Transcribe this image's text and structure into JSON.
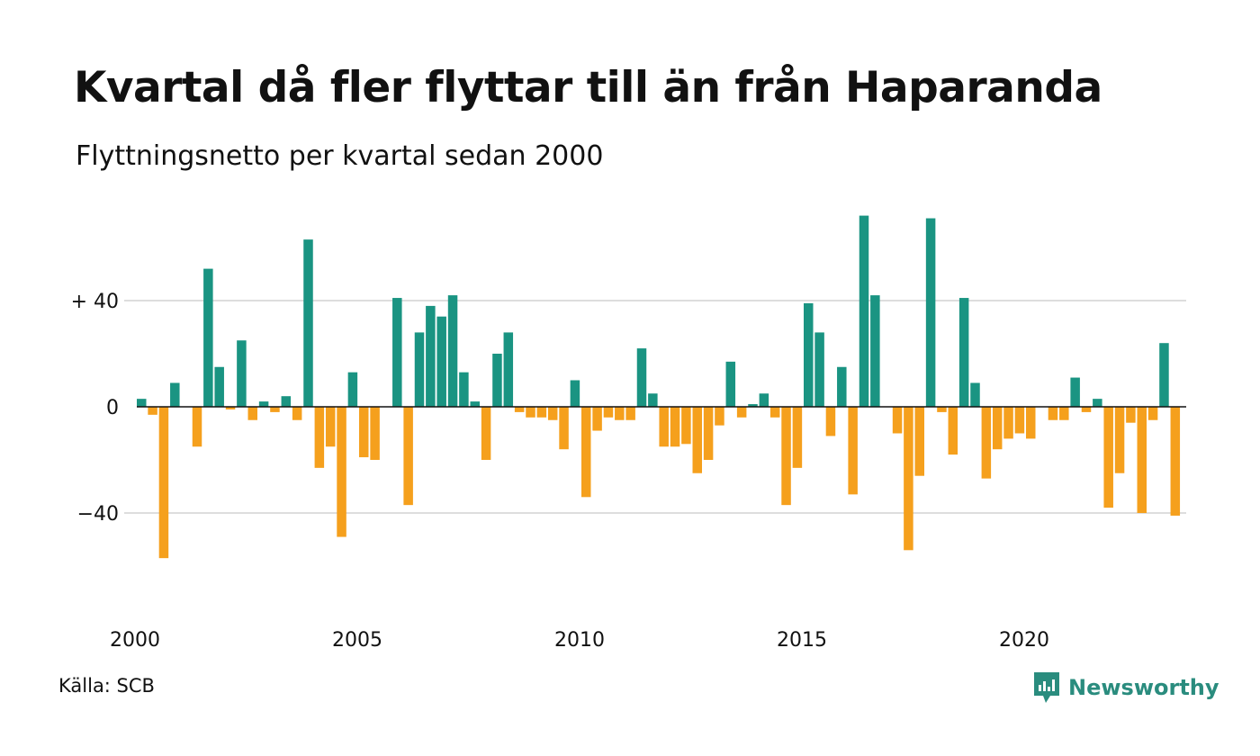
{
  "title": "Kvartal då fler flyttar till än från Haparanda",
  "subtitle": "Flyttningsnetto per kvartal sedan 2000",
  "source": "Källa: SCB",
  "brand": {
    "name": "Newsworthy",
    "color": "#2a8c7e",
    "icon": "newsworthy-logo-icon"
  },
  "colors": {
    "positive": "#1a9482",
    "negative": "#f5a01d",
    "grid": "#dddddd",
    "zero": "#111111"
  },
  "chart_data": {
    "type": "bar",
    "ylim": [
      -70,
      75
    ],
    "yticks": [
      {
        "value": 40,
        "label": "+ 40"
      },
      {
        "value": 0,
        "label": "0"
      },
      {
        "value": -40,
        "label": "−40"
      }
    ],
    "grid": true,
    "legend": "none",
    "x_start": "2000-Q1",
    "x_labels": [
      {
        "year": 2000,
        "label": "2000"
      },
      {
        "year": 2005,
        "label": "2005"
      },
      {
        "year": 2010,
        "label": "2010"
      },
      {
        "year": 2015,
        "label": "2015"
      },
      {
        "year": 2020,
        "label": "2020"
      }
    ],
    "values": [
      3,
      -3,
      -57,
      9,
      0,
      -15,
      52,
      15,
      -1,
      25,
      -5,
      2,
      -2,
      4,
      -5,
      63,
      -23,
      -15,
      -49,
      13,
      -19,
      -20,
      0,
      41,
      -37,
      28,
      38,
      34,
      42,
      13,
      2,
      -20,
      20,
      28,
      -2,
      -4,
      -4,
      -5,
      -16,
      10,
      -34,
      -9,
      -4,
      -5,
      -5,
      22,
      5,
      -15,
      -15,
      -14,
      -25,
      -20,
      -7,
      17,
      -4,
      1,
      5,
      -4,
      -37,
      -23,
      39,
      28,
      -11,
      15,
      -33,
      72,
      42,
      0,
      -10,
      -54,
      -26,
      71,
      -2,
      -18,
      41,
      9,
      -27,
      -16,
      -12,
      -10,
      -12,
      0,
      -5,
      -5,
      11,
      -2,
      3,
      -38,
      -25,
      -6,
      -40,
      -5,
      24,
      -41
    ]
  }
}
